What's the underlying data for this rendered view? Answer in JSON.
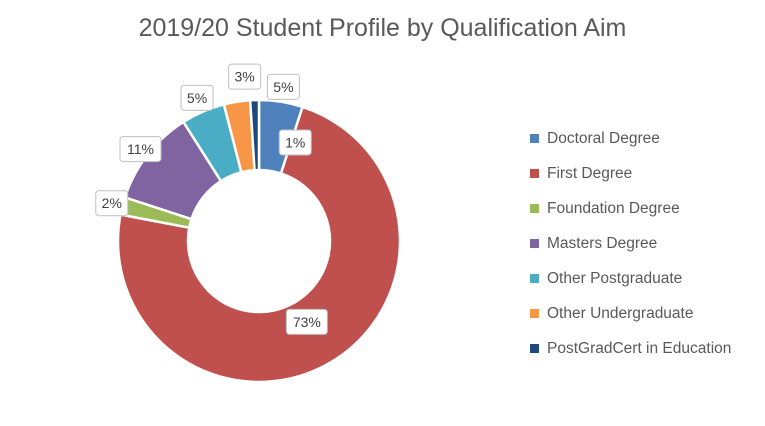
{
  "chart_data": {
    "type": "pie",
    "subtype": "donut",
    "title": "2019/20 Student Profile by Qualification Aim",
    "legend_position": "right",
    "categories": [
      "Doctoral Degree",
      "First Degree",
      "Foundation Degree",
      "Masters Degree",
      "Other Postgraduate",
      "Other Undergraduate",
      "PostGradCert in Education"
    ],
    "values": [
      5,
      73,
      2,
      11,
      5,
      3,
      1
    ],
    "data_labels": [
      "5%",
      "73%",
      "2%",
      "11%",
      "5%",
      "3%",
      "1%"
    ],
    "colors": [
      "#4f81bd",
      "#c0504d",
      "#9bbb59",
      "#8064a2",
      "#4bacc6",
      "#f79646",
      "#1f497d"
    ]
  }
}
